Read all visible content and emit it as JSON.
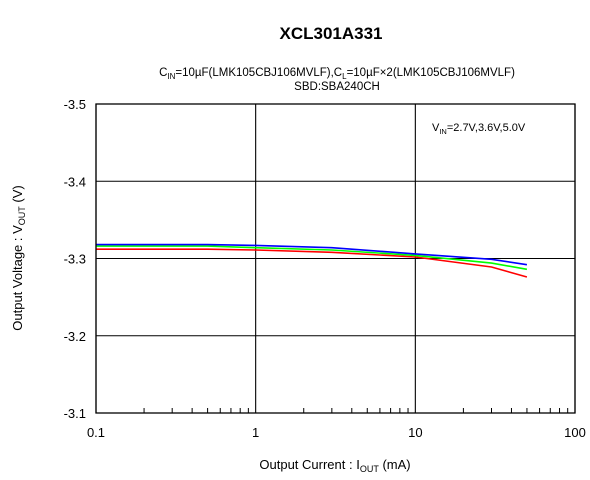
{
  "chart_data": {
    "type": "line",
    "title": "XCL301A331",
    "subtitle": {
      "line1": {
        "p1": "C",
        "p1_sub": "IN",
        "p2": "=10µF(LMK105CBJ106MVLF),C",
        "p2_sub": "L",
        "p3": "=10µF×2(LMK105CBJ106MVLF)"
      },
      "line2": "SBD:SBA240CH"
    },
    "xlabel": {
      "prefix": "Output Current : I",
      "sub": "OUT",
      "suffix": " (mA)"
    },
    "ylabel": {
      "prefix": "Output Voltage : V",
      "sub": "OUT",
      "suffix": " (V)"
    },
    "xscale": "log",
    "xlim": [
      0.1,
      100
    ],
    "ylim": [
      -3.1,
      -3.5
    ],
    "y_inverted": true,
    "xticks": [
      {
        "value": 0.1,
        "label": "0.1"
      },
      {
        "value": 1,
        "label": "1"
      },
      {
        "value": 10,
        "label": "10"
      },
      {
        "value": 100,
        "label": "100"
      }
    ],
    "yticks": [
      {
        "value": -3.5,
        "label": "-3.5"
      },
      {
        "value": -3.4,
        "label": "-3.4"
      },
      {
        "value": -3.3,
        "label": "-3.3"
      },
      {
        "value": -3.2,
        "label": "-3.2"
      },
      {
        "value": -3.1,
        "label": "-3.1"
      }
    ],
    "grid": true,
    "annotation": {
      "p1": "V",
      "p1_sub": "IN",
      "p2": "=2.7V,3.6V,5.0V"
    },
    "series": [
      {
        "color": "#ff0000",
        "x": [
          0.1,
          0.5,
          1,
          3,
          10,
          30,
          50
        ],
        "y": [
          -3.312,
          -3.312,
          -3.311,
          -3.308,
          -3.302,
          -3.289,
          -3.276
        ]
      },
      {
        "color": "#00ff00",
        "x": [
          0.1,
          0.5,
          1,
          3,
          10,
          30,
          50
        ],
        "y": [
          -3.316,
          -3.316,
          -3.314,
          -3.311,
          -3.304,
          -3.294,
          -3.286
        ]
      },
      {
        "color": "#0000ff",
        "x": [
          0.1,
          0.5,
          1,
          3,
          10,
          30,
          50
        ],
        "y": [
          -3.318,
          -3.318,
          -3.317,
          -3.314,
          -3.306,
          -3.299,
          -3.292
        ]
      }
    ]
  }
}
